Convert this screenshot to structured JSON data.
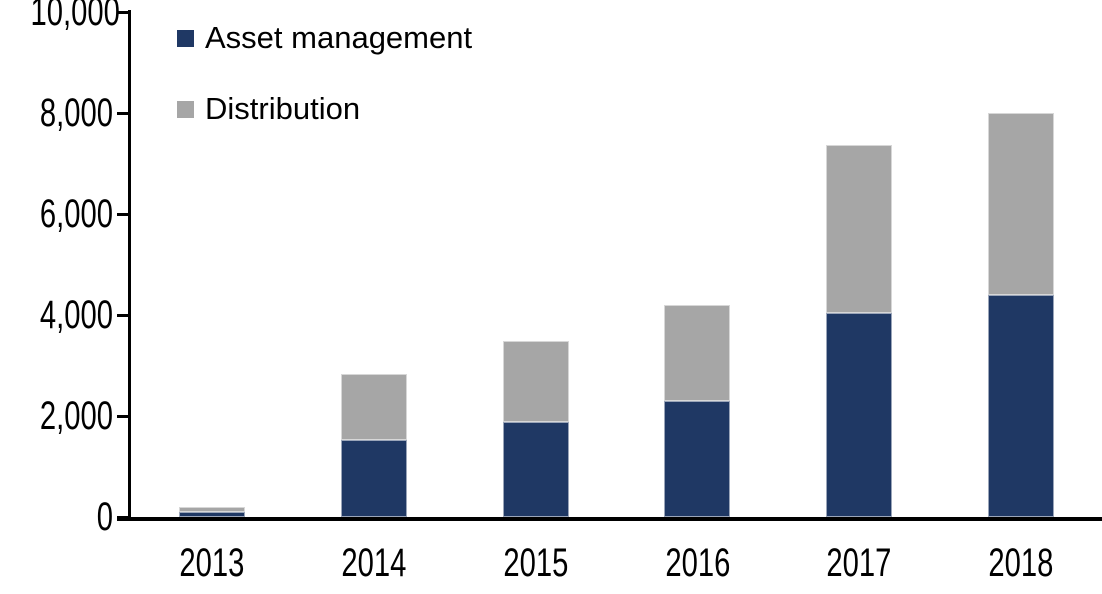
{
  "chart_data": {
    "type": "bar",
    "stacked": true,
    "title": "",
    "xlabel": "",
    "ylabel": "",
    "categories": [
      "2013",
      "2014",
      "2015",
      "2016",
      "2017",
      "2018"
    ],
    "series": [
      {
        "name": "Asset management",
        "color": "#1F3864",
        "values": [
          100,
          1530,
          1880,
          2300,
          4030,
          4400
        ]
      },
      {
        "name": "Distribution",
        "color": "#A6A6A6",
        "values": [
          90,
          1310,
          1600,
          1900,
          3330,
          3600
        ]
      }
    ],
    "totals": [
      190,
      2840,
      3480,
      4200,
      7360,
      8000
    ],
    "ylim": [
      0,
      10000
    ],
    "y_ticks": [
      "0",
      "2,000",
      "4,000",
      "6,000",
      "8,000",
      "10,000"
    ],
    "grid": false,
    "legend_position": "top-left-inside"
  },
  "legend": {
    "items": [
      {
        "label": "Asset management",
        "color": "#1F3864"
      },
      {
        "label": "Distribution",
        "color": "#A6A6A6"
      }
    ]
  },
  "colors": {
    "axis": "#000000",
    "text": "#000000",
    "background": "#FFFFFF",
    "asset_management": "#1F3864",
    "distribution": "#A6A6A6"
  }
}
